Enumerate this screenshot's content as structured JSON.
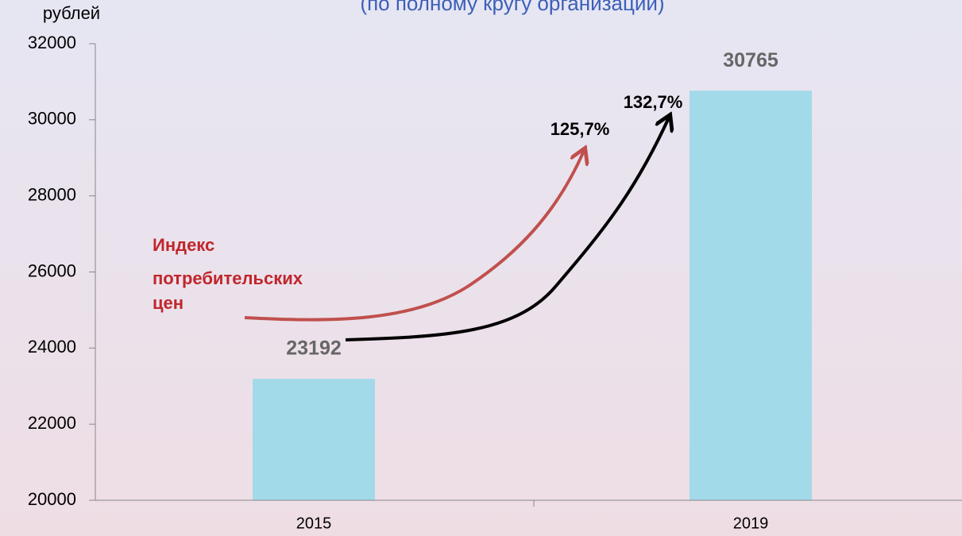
{
  "chart_data": {
    "type": "bar",
    "subtitle": "(по полному кругу организаций)",
    "y_label": "рублей",
    "categories": [
      "2015",
      "2019"
    ],
    "values": [
      23192,
      30765
    ],
    "color": "#a3dae9",
    "ylim": [
      20000,
      32000
    ],
    "yticks": [
      20000,
      22000,
      24000,
      26000,
      28000,
      30000,
      32000
    ],
    "annotations": {
      "cpi_label": [
        "Индекс",
        "потребительских",
        "цен"
      ],
      "cpi_growth": "125,7%",
      "wage_growth": "132,7%"
    }
  }
}
